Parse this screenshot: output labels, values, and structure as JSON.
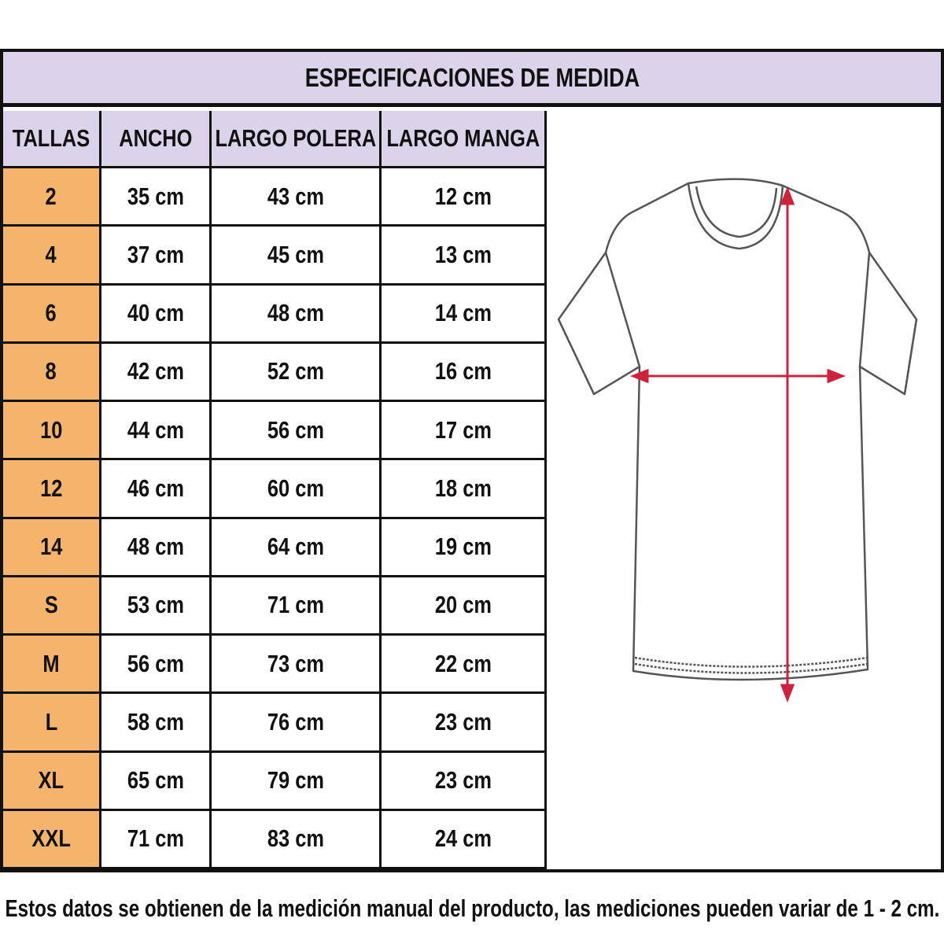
{
  "title": "ESPECIFICACIONES DE MEDIDA",
  "headers": [
    "TALLAS",
    "ANCHO",
    "LARGO POLERA",
    "LARGO MANGA"
  ],
  "rows": [
    [
      "2",
      "35 cm",
      "43 cm",
      "12 cm"
    ],
    [
      "4",
      "37 cm",
      "45 cm",
      "13 cm"
    ],
    [
      "6",
      "40 cm",
      "48 cm",
      "14 cm"
    ],
    [
      "8",
      "42 cm",
      "52 cm",
      "16 cm"
    ],
    [
      "10",
      "44 cm",
      "56 cm",
      "17 cm"
    ],
    [
      "12",
      "46 cm",
      "60 cm",
      "18 cm"
    ],
    [
      "14",
      "48 cm",
      "64 cm",
      "19 cm"
    ],
    [
      "S",
      "53 cm",
      "71 cm",
      "20 cm"
    ],
    [
      "M",
      "56 cm",
      "73 cm",
      "22 cm"
    ],
    [
      "L",
      "58 cm",
      "76 cm",
      "23 cm"
    ],
    [
      "XL",
      "65 cm",
      "79 cm",
      "23 cm"
    ],
    [
      "XXL",
      "71 cm",
      "83 cm",
      "24 cm"
    ]
  ],
  "footer": "Estos datos se obtienen de la medición manual del producto, las mediciones pueden variar de 1 - 2 cm.",
  "colors": {
    "header_bg": "#dcd3ea",
    "size_bg": "#f4b46c",
    "arrow": "#d0213b",
    "border": "#111111"
  },
  "illustration": "t-shirt-measurement-diagram"
}
